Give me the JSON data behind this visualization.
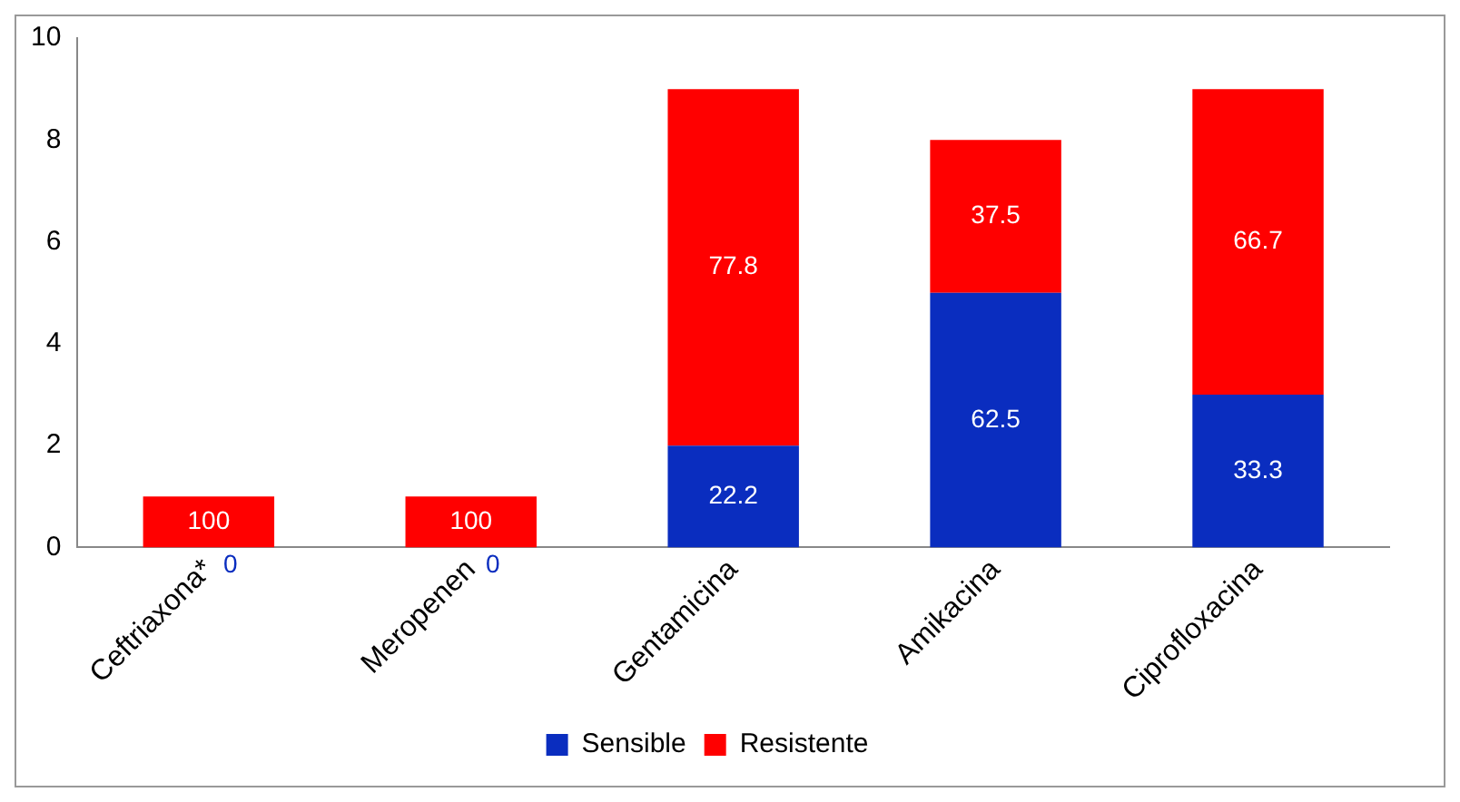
{
  "chart_data": {
    "type": "bar",
    "stacked": true,
    "categories": [
      "Ceftriaxona*",
      "Meropenen",
      "Gentamicina",
      "Amikacina",
      "Ciprofloxacina"
    ],
    "series": [
      {
        "name": "Sensible",
        "color": "#0a2dbf",
        "values": [
          0,
          0,
          2,
          5,
          3
        ]
      },
      {
        "name": "Resistente",
        "color": "#ff0000",
        "values": [
          1,
          1,
          7,
          3,
          6
        ]
      }
    ],
    "annotations": [
      "0",
      "0",
      "22.2",
      "62.5",
      "33.3",
      "100",
      "100",
      "77.8",
      "37.5",
      "66.7"
    ],
    "ylim": [
      0,
      10
    ],
    "yticks": [
      0,
      2,
      4,
      6,
      8,
      10
    ],
    "grid": false,
    "legend": "bottom"
  }
}
